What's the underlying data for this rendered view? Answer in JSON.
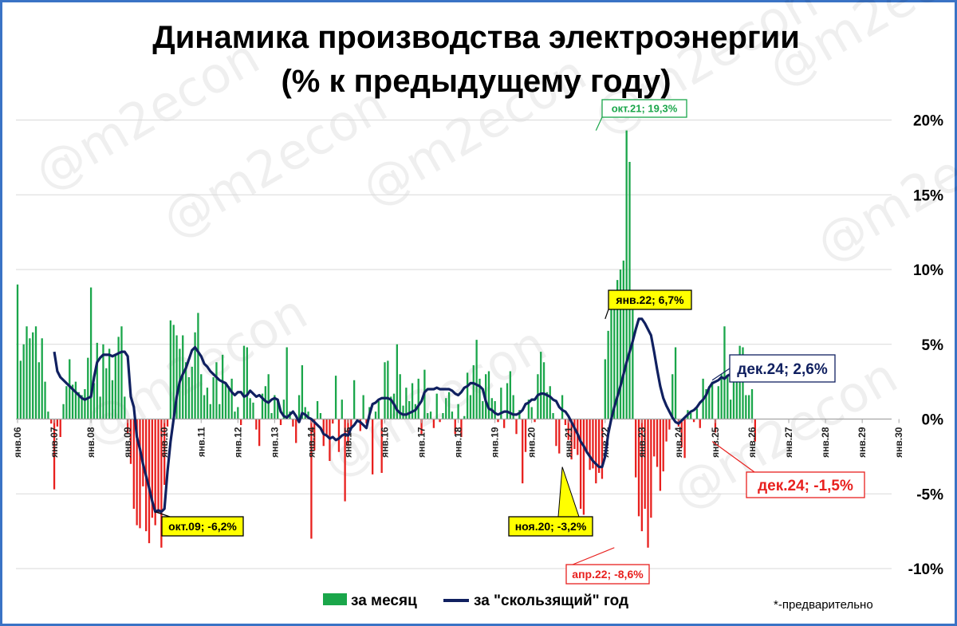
{
  "chart_data": {
    "type": "bar+line",
    "title_line1": "Динамика производства электроэнергии",
    "title_line2": "(% к предыдущему году)",
    "xlabel": "",
    "ylabel": "",
    "ylim": [
      -11,
      21
    ],
    "y_ticks": [
      {
        "value": 20,
        "label": "20%"
      },
      {
        "value": 15,
        "label": "15%"
      },
      {
        "value": 10,
        "label": "10%"
      },
      {
        "value": 5,
        "label": "5%"
      },
      {
        "value": 0,
        "label": "0%"
      },
      {
        "value": -5,
        "label": "-5%"
      },
      {
        "value": -10,
        "label": "-10%"
      }
    ],
    "x_ticks": [
      "янв.06",
      "янв.07",
      "янв.08",
      "янв.09",
      "янв.10",
      "янв.11",
      "янв.12",
      "янв.13",
      "янв.14",
      "янв.15",
      "янв.16",
      "янв.17",
      "янв.18",
      "янв.19",
      "янв.20",
      "янв.21",
      "янв.22",
      "янв.23",
      "янв.24",
      "янв.25",
      "янв.26",
      "янв.27",
      "янв.28",
      "янв.29",
      "янв.30"
    ],
    "monthly": {
      "name": "за месяц",
      "color_pos": "#1aa64a",
      "color_neg": "#e8201e",
      "start": "янв.06",
      "values": [
        9.0,
        3.9,
        5.0,
        6.2,
        5.4,
        5.8,
        6.2,
        3.8,
        5.4,
        2.5,
        0.5,
        -0.3,
        -4.7,
        -0.5,
        -1.2,
        1.0,
        2.2,
        4.0,
        2.3,
        2.5,
        1.8,
        1.6,
        2.0,
        4.1,
        8.8,
        2.4,
        5.1,
        1.5,
        5.0,
        3.4,
        4.7,
        2.6,
        4.3,
        5.5,
        6.2,
        1.5,
        -1.0,
        -3.0,
        -6.0,
        -7.1,
        -7.3,
        -4.5,
        -7.5,
        -8.3,
        -6.6,
        -7.1,
        -6.3,
        -8.6,
        -4.4,
        -0.5,
        6.6,
        6.3,
        5.6,
        4.7,
        5.6,
        3.8,
        2.8,
        3.5,
        5.8,
        7.1,
        3.0,
        1.6,
        2.1,
        1.0,
        2.8,
        3.8,
        1.0,
        4.3,
        2.4,
        2.2,
        2.7,
        0.5,
        0.8,
        -0.4,
        4.9,
        4.8,
        1.4,
        1.1,
        -0.7,
        -1.8,
        1.7,
        2.2,
        3.0,
        0.4,
        1.6,
        1.3,
        -0.4,
        1.3,
        4.8,
        0.5,
        -0.5,
        -1.6,
        1.6,
        3.6,
        0.8,
        0.5,
        -8.0,
        -2.1,
        1.2,
        0.4,
        -1.8,
        -1.1,
        -2.8,
        -0.3,
        2.9,
        -2.2,
        1.3,
        -5.5,
        -1.8,
        -0.7,
        2.6,
        -0.2,
        -0.8,
        1.6,
        -0.3,
        0.8,
        -3.7,
        0.5,
        1.2,
        -3.6,
        3.8,
        3.9,
        1.5,
        1.7,
        5.0,
        3.0,
        0.9,
        2.1,
        1.2,
        2.4,
        1.0,
        2.7,
        -1.0,
        3.3,
        0.4,
        0.5,
        -0.6,
        1.7,
        -0.2,
        0.4,
        1.4,
        1.8,
        0.5,
        -1.0,
        1.0,
        -1.2,
        0.2,
        3.1,
        1.6,
        3.6,
        5.3,
        2.7,
        1.2,
        3.0,
        3.2,
        1.4,
        1.2,
        -0.2,
        2.1,
        -0.6,
        2.4,
        3.2,
        1.6,
        -1.0,
        0.6,
        -4.3,
        -2.2,
        1.3,
        0.8,
        -0.2,
        3.0,
        4.5,
        3.8,
        1.8,
        2.2,
        0.4,
        -1.8,
        -2.3,
        1.6,
        -0.4,
        -1.4,
        -2.7,
        -2.0,
        -2.4,
        -6.0,
        -6.4,
        -2.3,
        -3.4,
        -3.3,
        -4.3,
        -3.6,
        -4.0,
        4.0,
        5.9,
        7.6,
        8.1,
        9.3,
        10.0,
        10.6,
        19.3,
        17.2,
        7.3,
        -3.9,
        -6.5,
        -7.5,
        -6.0,
        -8.6,
        -6.6,
        -2.5,
        -3.2,
        -4.8,
        -3.5,
        -1.5,
        -0.7,
        3.0,
        4.8,
        -0.5,
        -1.9,
        -2.6,
        0.6,
        0.4,
        -0.2,
        0.7,
        -0.6,
        2.7,
        2.0,
        2.2,
        2.5,
        -0.9,
        2.2,
        3.0,
        6.2,
        2.9,
        1.3,
        3.8,
        3.9,
        4.9,
        4.8,
        1.6,
        1.6,
        2.0,
        -1.5
      ]
    },
    "rolling": {
      "name": "за \"скользящий\" год",
      "color": "#102060",
      "start": "янв.07",
      "values": [
        4.5,
        3.2,
        2.8,
        2.6,
        2.4,
        2.2,
        2.0,
        1.8,
        1.6,
        1.4,
        1.3,
        1.4,
        1.5,
        2.8,
        3.8,
        4.1,
        4.3,
        4.3,
        4.3,
        4.2,
        4.3,
        4.4,
        4.5,
        4.5,
        4.2,
        1.5,
        0.8,
        -1.2,
        -2.0,
        -3.0,
        -3.8,
        -4.6,
        -5.5,
        -6.2,
        -6.1,
        -6.2,
        -6.0,
        -3.5,
        -1.5,
        0.0,
        1.5,
        2.5,
        3.0,
        3.4,
        4.0,
        4.6,
        4.8,
        4.5,
        4.2,
        3.7,
        3.5,
        3.2,
        3.0,
        2.8,
        2.6,
        2.5,
        2.4,
        2.1,
        1.8,
        1.6,
        1.8,
        1.8,
        1.5,
        1.6,
        1.9,
        1.7,
        1.5,
        1.6,
        1.4,
        1.2,
        1.1,
        1.3,
        1.4,
        1.3,
        0.5,
        0.2,
        0.1,
        0.3,
        0.5,
        0.2,
        -0.2,
        0.4,
        0.3,
        0.1,
        0.0,
        -0.2,
        -0.4,
        -0.6,
        -1.0,
        -1.1,
        -1.3,
        -1.2,
        -1.4,
        -1.3,
        -1.1,
        -1.0,
        -1.1,
        -0.6,
        -0.4,
        -0.1,
        -0.2,
        -0.4,
        -0.6,
        0.3,
        1.0,
        1.1,
        1.3,
        1.4,
        1.4,
        1.4,
        1.3,
        1.0,
        0.6,
        0.4,
        0.3,
        0.3,
        0.4,
        0.5,
        0.6,
        0.9,
        1.2,
        1.8,
        2.0,
        2.0,
        2.0,
        2.1,
        2.0,
        2.0,
        2.0,
        2.0,
        1.9,
        1.7,
        1.6,
        1.8,
        2.1,
        2.2,
        2.4,
        2.4,
        2.3,
        2.2,
        2.0,
        1.2,
        0.7,
        0.6,
        0.4,
        0.3,
        0.4,
        0.5,
        0.5,
        0.4,
        0.3,
        0.3,
        0.4,
        0.6,
        1.0,
        1.1,
        1.3,
        1.3,
        1.6,
        1.7,
        1.7,
        1.6,
        1.5,
        1.3,
        1.2,
        0.8,
        0.6,
        0.5,
        0.2,
        -0.2,
        -0.6,
        -1.0,
        -1.5,
        -1.8,
        -2.2,
        -2.5,
        -2.8,
        -3.0,
        -3.2,
        -3.2,
        -2.5,
        -1.0,
        0.0,
        0.8,
        1.5,
        2.2,
        3.0,
        3.8,
        4.5,
        5.2,
        6.0,
        6.7,
        6.7,
        6.4,
        6.0,
        5.6,
        4.5,
        3.3,
        2.2,
        1.4,
        0.9,
        0.5,
        0.1,
        -0.2,
        -0.3,
        -0.1,
        0.1,
        0.3,
        0.5,
        0.6,
        0.8,
        1.1,
        1.3,
        1.6,
        2.1,
        2.4,
        2.5,
        2.6,
        2.8,
        2.7,
        2.9,
        3.0,
        2.9,
        3.0,
        2.6
      ]
    },
    "annotations": [
      {
        "label": "окт.21; 19,3%",
        "value": 19.3,
        "style": "green"
      },
      {
        "label": "янв.22; 6,7%",
        "value": 6.7,
        "style": "yellow"
      },
      {
        "label": "дек.24; 2,6%",
        "value": 2.6,
        "style": "navy"
      },
      {
        "label": "окт.09; -6,2%",
        "value": -6.2,
        "style": "yellow"
      },
      {
        "label": "ноя.20; -3,2%",
        "value": -3.2,
        "style": "yellow"
      },
      {
        "label": "апр.22; -8,6%",
        "value": -8.6,
        "style": "red"
      },
      {
        "label": "дек.24; -1,5%",
        "value": -1.5,
        "style": "red-big"
      }
    ],
    "legend": {
      "position": "bottom-center",
      "items": [
        {
          "label": "за месяц",
          "color": "#1aa64a"
        },
        {
          "label": "за \"скользящий\" год",
          "color": "#102060"
        }
      ]
    },
    "note": "*-предварительно",
    "grid": true,
    "watermark": "@m2econ"
  }
}
